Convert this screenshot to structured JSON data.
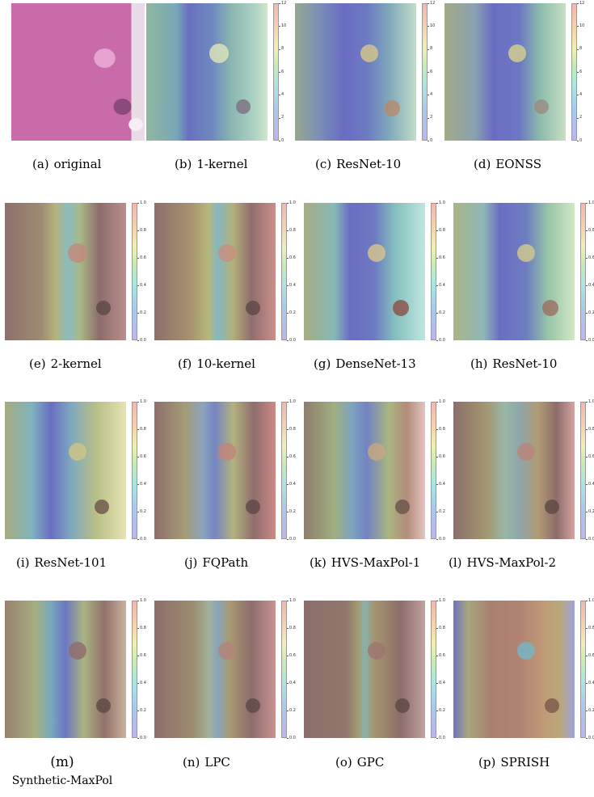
{
  "captions": [
    {
      "label": "(a)",
      "text": "original"
    },
    {
      "label": "(b)",
      "text": "1-kernel"
    },
    {
      "label": "(c)",
      "text": "ResNet-10"
    },
    {
      "label": "(d)",
      "text": "EONSS"
    },
    {
      "label": "(e)",
      "text": "2-kernel"
    },
    {
      "label": "(f)",
      "text": "10-kernel"
    },
    {
      "label": "(g)",
      "text": "DenseNet-13"
    },
    {
      "label": "(h)",
      "text": "ResNet-10"
    },
    {
      "label": "(i)",
      "text": "ResNet-101"
    },
    {
      "label": "(j)",
      "text": "FQPath"
    },
    {
      "label": "(k)",
      "text": "HVS-MaxPol-1"
    },
    {
      "label": "(l)",
      "text": "HVS-MaxPol-2"
    },
    {
      "label": "(m)",
      "text": "Synthetic-MaxPol"
    },
    {
      "label": "(n)",
      "text": "LPC"
    },
    {
      "label": "(o)",
      "text": "GPC"
    },
    {
      "label": "(p)",
      "text": "SPRISH"
    }
  ],
  "colorbar_ticks_row1": [
    "0",
    "2",
    "4",
    "6",
    "8",
    "10",
    "12"
  ],
  "colorbar_ticks_unit": [
    "0.0",
    "0.2",
    "0.4",
    "0.6",
    "0.8",
    "1.0"
  ],
  "colors": {
    "tissue_pink": "#c86aa8",
    "heat_blue": "#6f6fc2",
    "heat_cyan": "#83c6c8",
    "heat_yellow": "#c9c27a",
    "heat_brown": "#8d6d6a",
    "heat_red": "#c9807d"
  }
}
